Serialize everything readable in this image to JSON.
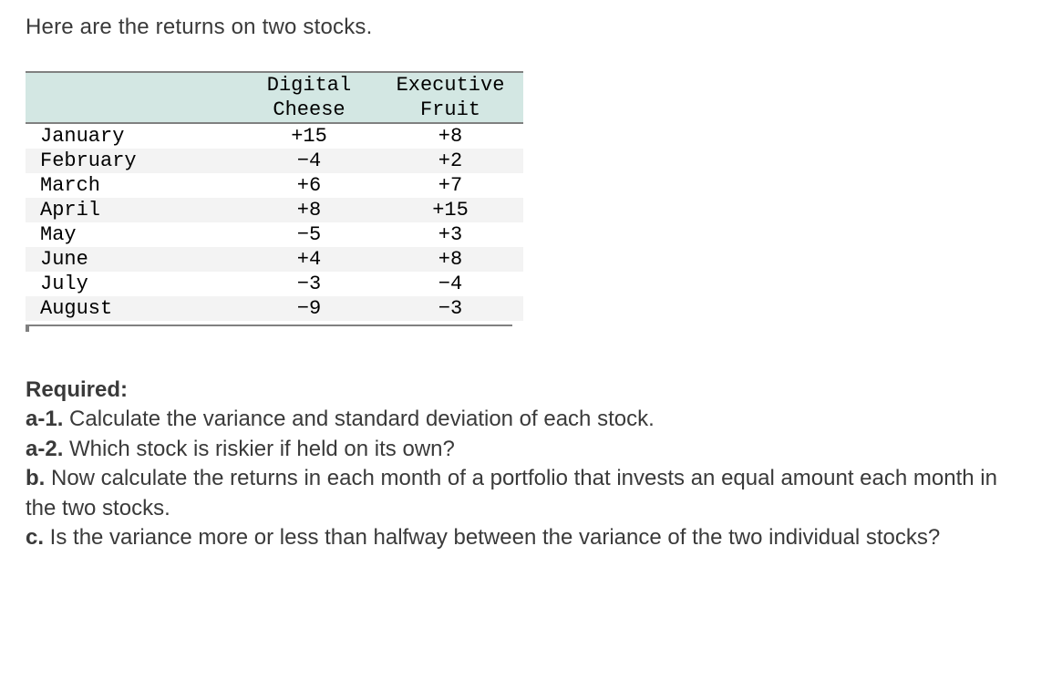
{
  "intro": "Here are the returns on two stocks.",
  "table": {
    "header_top": [
      "",
      "Digital",
      "Executive"
    ],
    "header_bot": [
      "",
      "Cheese",
      "Fruit"
    ],
    "rows": [
      {
        "month": "January",
        "a": "+15",
        "b": "+8"
      },
      {
        "month": "February",
        "a": "−4",
        "b": "+2"
      },
      {
        "month": "March",
        "a": "+6",
        "b": "+7"
      },
      {
        "month": "April",
        "a": "+8",
        "b": "+15"
      },
      {
        "month": "May",
        "a": "−5",
        "b": "+3"
      },
      {
        "month": "June",
        "a": "+4",
        "b": "+8"
      },
      {
        "month": "July",
        "a": "−3",
        "b": "−4"
      },
      {
        "month": "August",
        "a": "−9",
        "b": "−3"
      }
    ]
  },
  "required": {
    "heading": "Required:",
    "a1_label": "a-1.",
    "a1_text": " Calculate the variance and standard deviation of each stock.",
    "a2_label": "a-2.",
    "a2_text": " Which stock is riskier if held on its own?",
    "b_label": "b.",
    "b_text": " Now calculate the returns in each month of a portfolio that invests an equal amount each month in the two stocks.",
    "c_label": "c.",
    "c_text": " Is the variance more or less than halfway between the variance of the two individual stocks?"
  }
}
